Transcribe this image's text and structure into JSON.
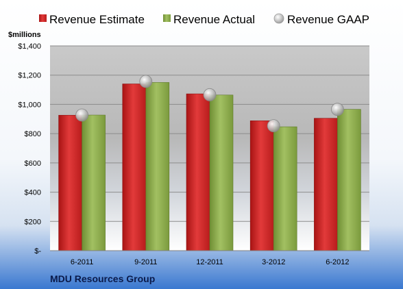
{
  "chart_data": {
    "type": "bar",
    "title": "",
    "ylabel": "$millions",
    "xlabel": "",
    "footer": "MDU Resources Group",
    "categories": [
      "6-2011",
      "9-2011",
      "12-2011",
      "3-2012",
      "6-2012"
    ],
    "series": [
      {
        "name": "Revenue Estimate",
        "kind": "bar",
        "color": "#d42a2a",
        "values": [
          926,
          1140,
          1072,
          888,
          905
        ]
      },
      {
        "name": "Revenue Actual",
        "kind": "bar",
        "color": "#8fae4f",
        "values": [
          927,
          1150,
          1064,
          847,
          966
        ]
      },
      {
        "name": "Revenue GAAP",
        "kind": "marker",
        "color": "#b4b4b4",
        "values": [
          927,
          1157,
          1066,
          854,
          966
        ]
      }
    ],
    "ylim": [
      0,
      1400
    ],
    "yticks": [
      0,
      200,
      400,
      600,
      800,
      1000,
      1200,
      1400
    ],
    "ytick_labels": [
      "$-",
      "$200",
      "$400",
      "$600",
      "$800",
      "$1,000",
      "$1,200",
      "$1,400"
    ],
    "grid": true,
    "legend_position": "top"
  }
}
